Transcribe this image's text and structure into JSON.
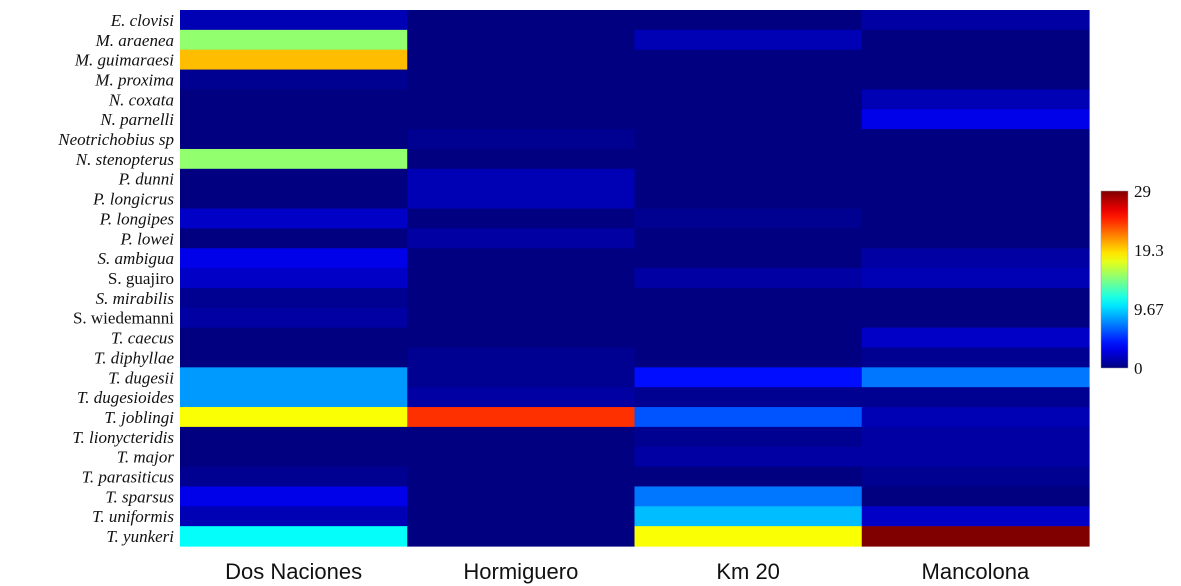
{
  "chart_data": {
    "type": "heatmap",
    "title": "",
    "xlabel": "",
    "ylabel": "",
    "columns": [
      "Dos Naciones",
      "Hormiguero",
      "Km 20",
      "Mancolona"
    ],
    "rows": [
      {
        "label": "E. clovisi",
        "italic": true
      },
      {
        "label": "M. araenea",
        "italic": true
      },
      {
        "label": "M. guimaraesi",
        "italic": true
      },
      {
        "label": "M. proxima",
        "italic": true
      },
      {
        "label": "N. coxata",
        "italic": true
      },
      {
        "label": "N. parnelli",
        "italic": true
      },
      {
        "label": "Neotrichobius sp",
        "italic": true
      },
      {
        "label": "N. stenopterus",
        "italic": true
      },
      {
        "label": "P. dunni",
        "italic": true
      },
      {
        "label": "P. longicrus",
        "italic": true
      },
      {
        "label": "P. longipes",
        "italic": true
      },
      {
        "label": "P. lowei",
        "italic": true
      },
      {
        "label": "S. ambigua",
        "italic": true
      },
      {
        "label": "S. guajiro",
        "italic": false
      },
      {
        "label": "S. mirabilis",
        "italic": true
      },
      {
        "label": "S. wiedemanni",
        "italic": false
      },
      {
        "label": "T. caecus",
        "italic": true
      },
      {
        "label": "T. diphyllae",
        "italic": true
      },
      {
        "label": "T. dugesii",
        "italic": true
      },
      {
        "label": "T. dugesioides",
        "italic": true
      },
      {
        "label": "T. joblingi",
        "italic": true
      },
      {
        "label": "T. lionycteridis",
        "italic": true
      },
      {
        "label": "T. major",
        "italic": true
      },
      {
        "label": "T. parasiticus",
        "italic": true
      },
      {
        "label": "T. sparsus",
        "italic": true
      },
      {
        "label": "T. uniformis",
        "italic": true
      },
      {
        "label": "T. yunkeri",
        "italic": true
      }
    ],
    "values": [
      [
        1.5,
        0,
        0,
        1.0
      ],
      [
        15,
        0,
        1.5,
        0
      ],
      [
        20,
        0,
        0,
        0
      ],
      [
        0.5,
        0,
        0,
        0
      ],
      [
        0,
        0,
        0,
        1.5
      ],
      [
        0,
        0,
        0,
        3
      ],
      [
        0,
        0.5,
        0,
        0
      ],
      [
        15,
        0,
        0,
        0
      ],
      [
        0,
        1.5,
        0,
        0
      ],
      [
        0,
        1.5,
        0,
        0
      ],
      [
        2,
        0,
        0.5,
        0
      ],
      [
        0,
        1.0,
        0,
        0
      ],
      [
        3,
        0,
        0,
        1.0
      ],
      [
        2,
        0,
        1.0,
        1.5
      ],
      [
        0.5,
        0,
        0,
        0
      ],
      [
        1.0,
        0,
        0,
        0
      ],
      [
        0,
        0,
        0,
        2
      ],
      [
        0,
        0.5,
        0,
        0.5
      ],
      [
        8,
        0.5,
        4,
        7
      ],
      [
        8,
        1.0,
        0.5,
        0.5
      ],
      [
        18,
        24,
        6,
        1.5
      ],
      [
        0,
        0,
        0.5,
        1.0
      ],
      [
        0,
        0,
        1.0,
        1.0
      ],
      [
        0.5,
        0,
        0,
        0.5
      ],
      [
        3,
        0,
        7,
        0
      ],
      [
        1.5,
        0,
        9,
        2
      ],
      [
        11,
        0,
        18,
        29
      ]
    ],
    "colorbar": {
      "min": 0,
      "max": 29,
      "ticks": [
        "29",
        "19.3",
        "9.67",
        "0"
      ],
      "tick_values": [
        29,
        19.3,
        9.67,
        0
      ],
      "colormap": "jet"
    }
  }
}
